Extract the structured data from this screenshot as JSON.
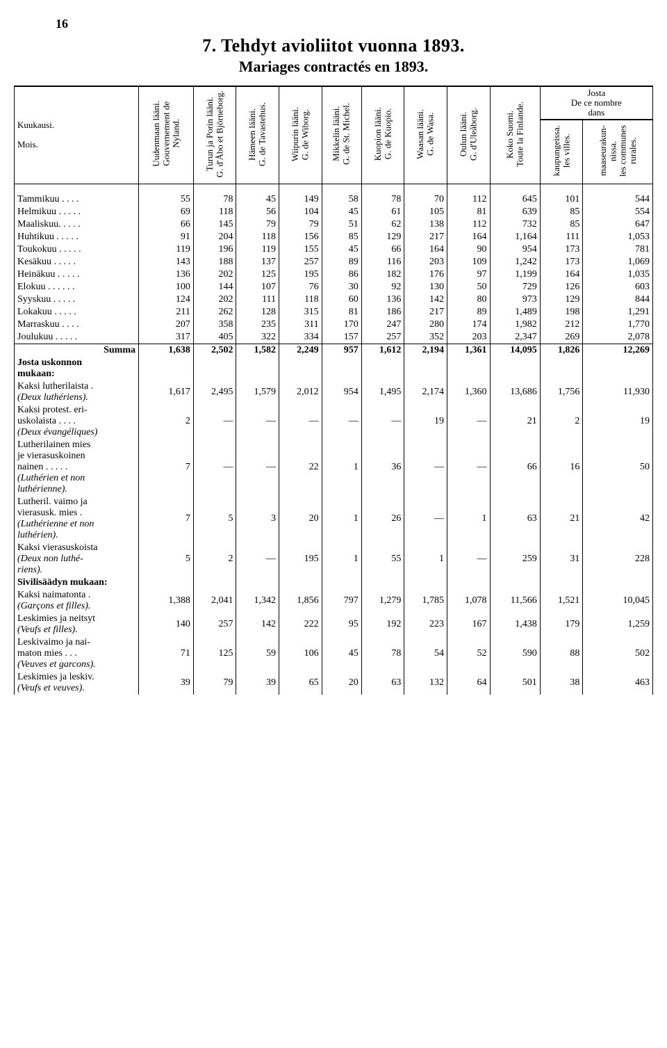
{
  "page_number": "16",
  "title": "7. Tehdyt avioliitot vuonna 1893.",
  "subtitle": "Mariages contractés en 1893.",
  "col_rowhead_top": "Kuukausi.",
  "col_rowhead_bottom": "Mois.",
  "josta_group": "Josta\nDe ce nombre\ndans",
  "columns": [
    "Uudenmaan lääni.\nGouvernement de\nNyland.",
    "Turun ja Porin lääni.\nG. d'Åbo et Björneborg.",
    "Hämeen lääni.\nG. de Tavastehus.",
    "Wiipurin lääni.\nG. de Wiborg.",
    "Mikkelin lääni.\nG. de St. Michel.",
    "Kuopion lääni.\nG. de Kuopio.",
    "Waasan lääni.\nG. de Wasa.",
    "Oulun lääni.\nG. d'Uleåborg.",
    "Koko Suomi.\nToute la Finlande.",
    "kaupungeissa.\nles villes.",
    "maaseurakun-\nnissa.\nles communes\nrurales."
  ],
  "months": [
    {
      "label": "Tammikuu . . . .",
      "v": [
        "55",
        "78",
        "45",
        "149",
        "58",
        "78",
        "70",
        "112",
        "645",
        "101",
        "544"
      ]
    },
    {
      "label": "Helmikuu . . . . .",
      "v": [
        "69",
        "118",
        "56",
        "104",
        "45",
        "61",
        "105",
        "81",
        "639",
        "85",
        "554"
      ]
    },
    {
      "label": "Maaliskuu. . . . .",
      "v": [
        "66",
        "145",
        "79",
        "79",
        "51",
        "62",
        "138",
        "112",
        "732",
        "85",
        "647"
      ]
    },
    {
      "label": "Huhtikuu . . . . .",
      "v": [
        "91",
        "204",
        "118",
        "156",
        "85",
        "129",
        "217",
        "164",
        "1,164",
        "111",
        "1,053"
      ]
    },
    {
      "label": "Toukokuu . . . . .",
      "v": [
        "119",
        "196",
        "119",
        "155",
        "45",
        "66",
        "164",
        "90",
        "954",
        "173",
        "781"
      ]
    },
    {
      "label": "Kesäkuu . . . . .",
      "v": [
        "143",
        "188",
        "137",
        "257",
        "89",
        "116",
        "203",
        "109",
        "1,242",
        "173",
        "1,069"
      ]
    },
    {
      "label": "Heinäkuu . . . . .",
      "v": [
        "136",
        "202",
        "125",
        "195",
        "86",
        "182",
        "176",
        "97",
        "1,199",
        "164",
        "1,035"
      ]
    },
    {
      "label": "Elokuu . . . . . .",
      "v": [
        "100",
        "144",
        "107",
        "76",
        "30",
        "92",
        "130",
        "50",
        "729",
        "126",
        "603"
      ]
    },
    {
      "label": "Syyskuu . . . . .",
      "v": [
        "124",
        "202",
        "111",
        "118",
        "60",
        "136",
        "142",
        "80",
        "973",
        "129",
        "844"
      ]
    },
    {
      "label": "Lokakuu . . . . .",
      "v": [
        "211",
        "262",
        "128",
        "315",
        "81",
        "186",
        "217",
        "89",
        "1,489",
        "198",
        "1,291"
      ]
    },
    {
      "label": "Marraskuu . . . .",
      "v": [
        "207",
        "358",
        "235",
        "311",
        "170",
        "247",
        "280",
        "174",
        "1,982",
        "212",
        "1,770"
      ]
    },
    {
      "label": "Joulukuu . . . . .",
      "v": [
        "317",
        "405",
        "322",
        "334",
        "157",
        "257",
        "352",
        "203",
        "2,347",
        "269",
        "2,078"
      ]
    }
  ],
  "summa_label": "Summa",
  "summa": [
    "1,638",
    "2,502",
    "1,582",
    "2,249",
    "957",
    "1,612",
    "2,194",
    "1,361",
    "14,095",
    "1,826",
    "12,269"
  ],
  "section1_heading": "Josta uskonnon\nmukaan:",
  "religion_rows": [
    {
      "label": "Kaksi lutherilaista .",
      "it": "(Deux luthériens).",
      "v": [
        "1,617",
        "2,495",
        "1,579",
        "2,012",
        "954",
        "1,495",
        "2,174",
        "1,360",
        "13,686",
        "1,756",
        "11,930"
      ]
    },
    {
      "label": "Kaksi protest. eri-\nuskolaista . . . .",
      "it": "(Deux évangéliques)",
      "v": [
        "2",
        "—",
        "—",
        "—",
        "—",
        "—",
        "19",
        "—",
        "21",
        "2",
        "19"
      ]
    },
    {
      "label": "Lutherilainen mies\nje vierasuskoinen\nnainen . . . . .",
      "it": "(Luthérien et non\nluthérienne).",
      "v": [
        "7",
        "—",
        "—",
        "22",
        "1",
        "36",
        "—",
        "—",
        "66",
        "16",
        "50"
      ]
    },
    {
      "label": "Lutheril. vaimo ja\nvierasusk. mies .",
      "it": "(Luthérienne et non\nluthérien).",
      "v": [
        "7",
        "5",
        "3",
        "20",
        "1",
        "26",
        "—",
        "1",
        "63",
        "21",
        "42"
      ]
    },
    {
      "label": "Kaksi vierasuskoista",
      "it": "(Deux non luthé-\nriens).",
      "v": [
        "5",
        "2",
        "—",
        "195",
        "1",
        "55",
        "1",
        "—",
        "259",
        "31",
        "228"
      ]
    }
  ],
  "section2_heading": "Sivilisäädyn mukaan:",
  "civil_rows": [
    {
      "label": "Kaksi naimatonta .",
      "it": "(Garçons et filles).",
      "v": [
        "1,388",
        "2,041",
        "1,342",
        "1,856",
        "797",
        "1,279",
        "1,785",
        "1,078",
        "11,566",
        "1,521",
        "10,045"
      ]
    },
    {
      "label": "Leskimies ja neitsyt",
      "it": "(Veufs et filles).",
      "v": [
        "140",
        "257",
        "142",
        "222",
        "95",
        "192",
        "223",
        "167",
        "1,438",
        "179",
        "1,259"
      ]
    },
    {
      "label": "Leskivaimo ja nai-\nmaton mies . . .",
      "it": "(Veuves et garcons).",
      "v": [
        "71",
        "125",
        "59",
        "106",
        "45",
        "78",
        "54",
        "52",
        "590",
        "88",
        "502"
      ]
    },
    {
      "label": "Leskimies ja leskiv.",
      "it": "(Veufs et veuves).",
      "v": [
        "39",
        "79",
        "39",
        "65",
        "20",
        "63",
        "132",
        "64",
        "501",
        "38",
        "463"
      ]
    }
  ]
}
